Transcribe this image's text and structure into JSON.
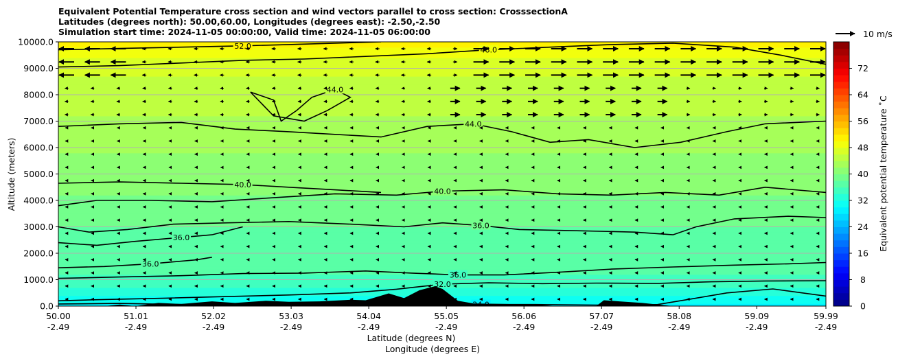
{
  "chart_data": {
    "type": "heatmap",
    "title_lines": [
      "Equivalent Potential Temperature cross section and wind vectors parallel to cross section: CrosssectionA",
      "Latitudes (degrees north): 50.00,60.00, Longitudes (degrees east): -2.50,-2.50",
      "Simulation start time: 2024-11-05 00:00:00, Valid time: 2024-11-05 06:00:00"
    ],
    "xlabel_1": "Latitude (degrees N)",
    "xlabel_2": "Longitude (degrees E)",
    "ylabel": "Altitude (meters)",
    "xlim": [
      50.0,
      59.99
    ],
    "ylim": [
      0,
      10000
    ],
    "x_ticks": [
      {
        "lat": 50.0,
        "lat_label": "50.00",
        "lon_label": "-2.49"
      },
      {
        "lat": 51.01,
        "lat_label": "51.01",
        "lon_label": "-2.49"
      },
      {
        "lat": 52.02,
        "lat_label": "52.02",
        "lon_label": "-2.49"
      },
      {
        "lat": 53.03,
        "lat_label": "53.03",
        "lon_label": "-2.49"
      },
      {
        "lat": 54.04,
        "lat_label": "54.04",
        "lon_label": "-2.49"
      },
      {
        "lat": 55.05,
        "lat_label": "55.05",
        "lon_label": "-2.49"
      },
      {
        "lat": 56.06,
        "lat_label": "56.06",
        "lon_label": "-2.49"
      },
      {
        "lat": 57.07,
        "lat_label": "57.07",
        "lon_label": "-2.49"
      },
      {
        "lat": 58.08,
        "lat_label": "58.08",
        "lon_label": "-2.49"
      },
      {
        "lat": 59.09,
        "lat_label": "59.09",
        "lon_label": "-2.49"
      },
      {
        "lat": 59.99,
        "lat_label": "59.99",
        "lon_label": "-2.49"
      }
    ],
    "y_ticks": [
      {
        "value": 0,
        "label": "0.0"
      },
      {
        "value": 1000,
        "label": "1000.0"
      },
      {
        "value": 2000,
        "label": "2000.0"
      },
      {
        "value": 3000,
        "label": "3000.0"
      },
      {
        "value": 4000,
        "label": "4000.0"
      },
      {
        "value": 5000,
        "label": "5000.0"
      },
      {
        "value": 6000,
        "label": "6000.0"
      },
      {
        "value": 7000,
        "label": "7000.0"
      },
      {
        "value": 8000,
        "label": "8000.0"
      },
      {
        "value": 9000,
        "label": "9000.0"
      },
      {
        "value": 10000,
        "label": "10000.0"
      }
    ],
    "grid": "horizontal",
    "colorbar": {
      "label": "Equivalent potential temperature ˚C",
      "range": [
        0,
        80
      ],
      "step": 2,
      "ticks": [
        {
          "value": 0,
          "label": "0"
        },
        {
          "value": 8,
          "label": "8"
        },
        {
          "value": 16,
          "label": "16"
        },
        {
          "value": 24,
          "label": "24"
        },
        {
          "value": 32,
          "label": "32"
        },
        {
          "value": 40,
          "label": "40"
        },
        {
          "value": 48,
          "label": "48"
        },
        {
          "value": 56,
          "label": "56"
        },
        {
          "value": 64,
          "label": "64"
        },
        {
          "value": 72,
          "label": "72"
        }
      ]
    },
    "wind_key": {
      "label": "10 m/s",
      "speed": 10
    },
    "temperature_profile": [
      {
        "z": 0,
        "theta": 29
      },
      {
        "z": 500,
        "theta": 33
      },
      {
        "z": 1000,
        "theta": 35.5
      },
      {
        "z": 1500,
        "theta": 36.5
      },
      {
        "z": 2500,
        "theta": 37.5
      },
      {
        "z": 3500,
        "theta": 38.5
      },
      {
        "z": 4500,
        "theta": 40.5
      },
      {
        "z": 5500,
        "theta": 41.5
      },
      {
        "z": 6500,
        "theta": 43
      },
      {
        "z": 7500,
        "theta": 44.5
      },
      {
        "z": 8500,
        "theta": 45.5
      },
      {
        "z": 9200,
        "theta": 47
      },
      {
        "z": 9700,
        "theta": 49
      },
      {
        "z": 10000,
        "theta": 51
      }
    ],
    "contours": [
      {
        "level": 24.0,
        "label": "24.0",
        "points": [
          [
            50.0,
            80
          ],
          [
            50.8,
            100
          ],
          [
            51.6,
            60
          ],
          [
            52.5,
            90
          ],
          [
            53.5,
            70
          ],
          [
            54.2,
            120
          ],
          [
            54.8,
            80
          ],
          [
            55.5,
            60
          ],
          [
            56.2,
            60
          ],
          [
            57.0,
            40
          ],
          [
            57.8,
            60
          ],
          [
            58.3,
            300
          ],
          [
            58.7,
            500
          ],
          [
            59.3,
            650
          ],
          [
            59.99,
            380
          ]
        ]
      },
      {
        "level": 32.0,
        "label": "32.0",
        "points": [
          [
            50.0,
            200
          ],
          [
            50.6,
            250
          ],
          [
            51.4,
            300
          ],
          [
            52.2,
            360
          ],
          [
            53.0,
            420
          ],
          [
            53.8,
            500
          ],
          [
            54.4,
            640
          ],
          [
            55.0,
            830
          ],
          [
            55.6,
            880
          ],
          [
            56.3,
            850
          ],
          [
            57.0,
            870
          ],
          [
            57.8,
            860
          ],
          [
            58.5,
            920
          ],
          [
            59.2,
            950
          ],
          [
            59.99,
            960
          ]
        ]
      },
      {
        "level": 36.0,
        "label": "36.0",
        "points": [
          [
            50.0,
            1050
          ],
          [
            50.8,
            1100
          ],
          [
            51.6,
            1150
          ],
          [
            52.4,
            1230
          ],
          [
            53.2,
            1250
          ],
          [
            54.0,
            1330
          ],
          [
            54.6,
            1250
          ],
          [
            55.2,
            1180
          ],
          [
            55.8,
            1180
          ],
          [
            56.5,
            1280
          ],
          [
            57.2,
            1400
          ],
          [
            58.0,
            1480
          ],
          [
            58.8,
            1550
          ],
          [
            59.5,
            1600
          ],
          [
            59.99,
            1650
          ]
        ]
      },
      {
        "level": 36.0,
        "label": "36.0",
        "points": [
          [
            50.0,
            1450
          ],
          [
            50.6,
            1500
          ],
          [
            51.2,
            1600
          ],
          [
            51.8,
            1750
          ],
          [
            52.0,
            1850
          ]
        ]
      },
      {
        "level": 36.0,
        "label": "36.0",
        "points": [
          [
            50.0,
            2400
          ],
          [
            50.5,
            2300
          ],
          [
            51.0,
            2450
          ],
          [
            51.6,
            2600
          ],
          [
            52.0,
            2700
          ],
          [
            52.4,
            3000
          ]
        ]
      },
      {
        "level": 36.0,
        "label": "36.0",
        "points": [
          [
            50.0,
            3000
          ],
          [
            50.4,
            2800
          ],
          [
            50.9,
            2900
          ],
          [
            51.5,
            3100
          ],
          [
            52.2,
            3150
          ],
          [
            53.0,
            3200
          ],
          [
            53.8,
            3100
          ],
          [
            54.5,
            3000
          ],
          [
            55.0,
            3150
          ],
          [
            55.5,
            3050
          ],
          [
            56.0,
            2900
          ],
          [
            56.8,
            2850
          ],
          [
            57.5,
            2800
          ],
          [
            58.0,
            2700
          ],
          [
            58.3,
            3000
          ],
          [
            58.8,
            3300
          ],
          [
            59.5,
            3400
          ],
          [
            59.99,
            3350
          ]
        ]
      },
      {
        "level": 40.0,
        "label": "40.0",
        "points": [
          [
            50.0,
            3800
          ],
          [
            50.5,
            4000
          ],
          [
            51.2,
            4000
          ],
          [
            52.0,
            3950
          ],
          [
            52.8,
            4100
          ],
          [
            53.6,
            4250
          ],
          [
            54.4,
            4200
          ],
          [
            55.0,
            4350
          ],
          [
            55.8,
            4400
          ],
          [
            56.5,
            4250
          ],
          [
            57.2,
            4200
          ],
          [
            57.9,
            4300
          ],
          [
            58.6,
            4200
          ],
          [
            59.2,
            4500
          ],
          [
            59.99,
            4300
          ]
        ]
      },
      {
        "level": 40.0,
        "label": "40.0",
        "points": [
          [
            50.0,
            4650
          ],
          [
            50.8,
            4700
          ],
          [
            51.6,
            4650
          ],
          [
            52.4,
            4600
          ],
          [
            53.0,
            4500
          ],
          [
            53.6,
            4400
          ],
          [
            54.2,
            4300
          ]
        ]
      },
      {
        "level": 44.0,
        "label": "44.0",
        "points": [
          [
            50.0,
            6800
          ],
          [
            50.8,
            6900
          ],
          [
            51.6,
            6950
          ],
          [
            52.3,
            6700
          ],
          [
            53.0,
            6600
          ],
          [
            53.6,
            6500
          ],
          [
            54.2,
            6400
          ],
          [
            54.8,
            6800
          ],
          [
            55.4,
            6900
          ],
          [
            55.9,
            6600
          ],
          [
            56.4,
            6200
          ],
          [
            56.9,
            6300
          ],
          [
            57.5,
            6000
          ],
          [
            58.1,
            6200
          ],
          [
            58.7,
            6600
          ],
          [
            59.2,
            6900
          ],
          [
            59.99,
            7000
          ]
        ]
      },
      {
        "level": 44.0,
        "label": "44.0",
        "points": [
          [
            52.5,
            8100
          ],
          [
            52.8,
            7800
          ],
          [
            52.9,
            7000
          ],
          [
            53.1,
            7400
          ],
          [
            53.3,
            7900
          ],
          [
            53.6,
            8200
          ],
          [
            53.8,
            7900
          ],
          [
            53.5,
            7400
          ],
          [
            53.2,
            7000
          ],
          [
            52.8,
            7200
          ],
          [
            52.5,
            8100
          ]
        ]
      },
      {
        "level": 48.0,
        "label": "48.0",
        "points": [
          [
            50.0,
            9050
          ],
          [
            50.8,
            9100
          ],
          [
            51.6,
            9200
          ],
          [
            52.4,
            9300
          ],
          [
            53.2,
            9350
          ],
          [
            54.0,
            9450
          ],
          [
            54.8,
            9550
          ],
          [
            55.6,
            9700
          ],
          [
            56.4,
            9800
          ],
          [
            57.2,
            9900
          ],
          [
            58.0,
            9950
          ],
          [
            58.8,
            9800
          ],
          [
            59.4,
            9500
          ],
          [
            59.99,
            9150
          ]
        ]
      },
      {
        "level": 52.0,
        "label": "52.0",
        "points": [
          [
            50.0,
            9700
          ],
          [
            50.8,
            9750
          ],
          [
            51.6,
            9800
          ],
          [
            52.4,
            9850
          ],
          [
            53.0,
            9900
          ],
          [
            53.6,
            9950
          ],
          [
            54.2,
            10000
          ]
        ]
      }
    ],
    "terrain_profile": [
      [
        50.0,
        0
      ],
      [
        50.6,
        0
      ],
      [
        50.8,
        60
      ],
      [
        51.0,
        0
      ],
      [
        51.3,
        120
      ],
      [
        51.6,
        80
      ],
      [
        52.0,
        180
      ],
      [
        52.3,
        120
      ],
      [
        52.7,
        200
      ],
      [
        53.0,
        160
      ],
      [
        53.4,
        180
      ],
      [
        53.8,
        240
      ],
      [
        54.0,
        220
      ],
      [
        54.3,
        480
      ],
      [
        54.5,
        300
      ],
      [
        54.7,
        600
      ],
      [
        54.9,
        750
      ],
      [
        55.0,
        650
      ],
      [
        55.2,
        200
      ],
      [
        55.4,
        100
      ],
      [
        55.8,
        80
      ],
      [
        56.2,
        60
      ],
      [
        56.5,
        0
      ],
      [
        57.0,
        0
      ],
      [
        57.1,
        220
      ],
      [
        57.3,
        180
      ],
      [
        57.6,
        120
      ],
      [
        57.8,
        60
      ],
      [
        58.0,
        0
      ],
      [
        59.99,
        0
      ]
    ]
  }
}
